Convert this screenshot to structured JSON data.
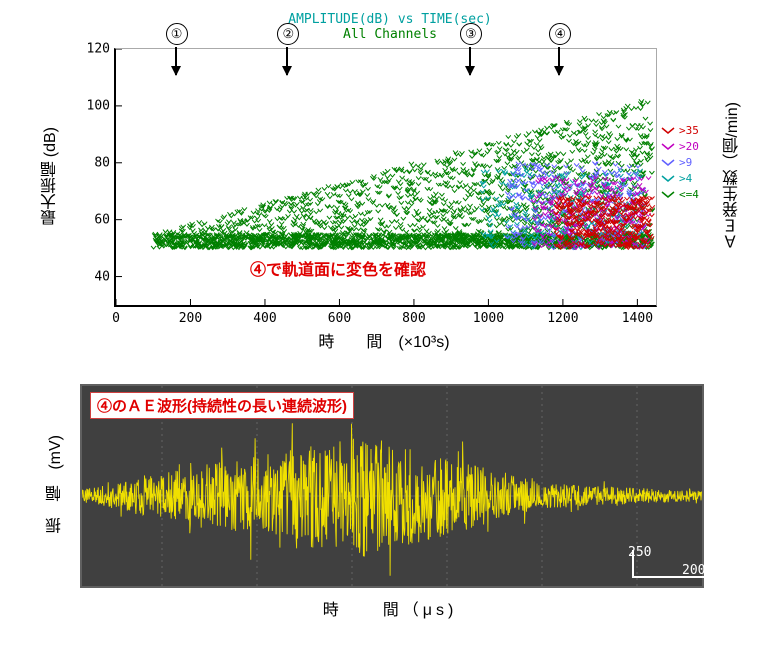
{
  "scatter": {
    "title": "AMPLITUDE(dB) vs TIME(sec)",
    "subtitle": "All Channels",
    "title_color": "#00a0a0",
    "subtitle_color": "#008000",
    "title_fontsize": 13,
    "y_label_left": "最大振幅   (dB)",
    "y_label_right": "ＡＥ発生数（個/min)",
    "x_label": "時　　間　(×10³s)",
    "xlim": [
      0,
      1450
    ],
    "ylim": [
      30,
      120
    ],
    "xticks": [
      0,
      200,
      400,
      600,
      800,
      1000,
      1200,
      1400
    ],
    "yticks": [
      40,
      60,
      80,
      100,
      120
    ],
    "grid_color": "#d0d0d0",
    "annotation_text": "④で軌道面に変色を確認",
    "annotation_color": "#e00000",
    "markers": [
      {
        "id": "①",
        "x": 160
      },
      {
        "id": "②",
        "x": 460
      },
      {
        "id": "③",
        "x": 950
      },
      {
        "id": "④",
        "x": 1190
      }
    ],
    "legend": [
      {
        "label": ">35",
        "color": "#d00000"
      },
      {
        "label": ">20",
        "color": "#c000c0"
      },
      {
        "label": ">9",
        "color": "#6060ff"
      },
      {
        "label": ">4",
        "color": "#00a0a0"
      },
      {
        "label": "<=4",
        "color": "#008000"
      }
    ],
    "data_description": "Dense scatter of AE events. X≈100..1440, Y mostly 50..100 dB. Density floor at ~50 dB across full range. Heavy red/purple cluster at X>1150 Y 50-70. Blue/purple band X 1000-1300 Y 50-80. Green elsewhere."
  },
  "waveform": {
    "title": "④のＡＥ波形(持続性の長い連続波形)",
    "title_color": "#e00000",
    "y_label": "振　幅　(mV)",
    "x_label": "時　　間（μs)",
    "background_color": "#404040",
    "border_color": "#606060",
    "trace_color": "#f0e000",
    "grid_major_color": "#888888",
    "scale_y_label": "250",
    "scale_x_label": "200",
    "scale_text_color": "#ffffff",
    "envelope_description": "Continuous AE burst ~0..1000 μs with amplitude build 0→peak at ~450 μs, decay to low noise by ~800 μs, residual trailing."
  }
}
